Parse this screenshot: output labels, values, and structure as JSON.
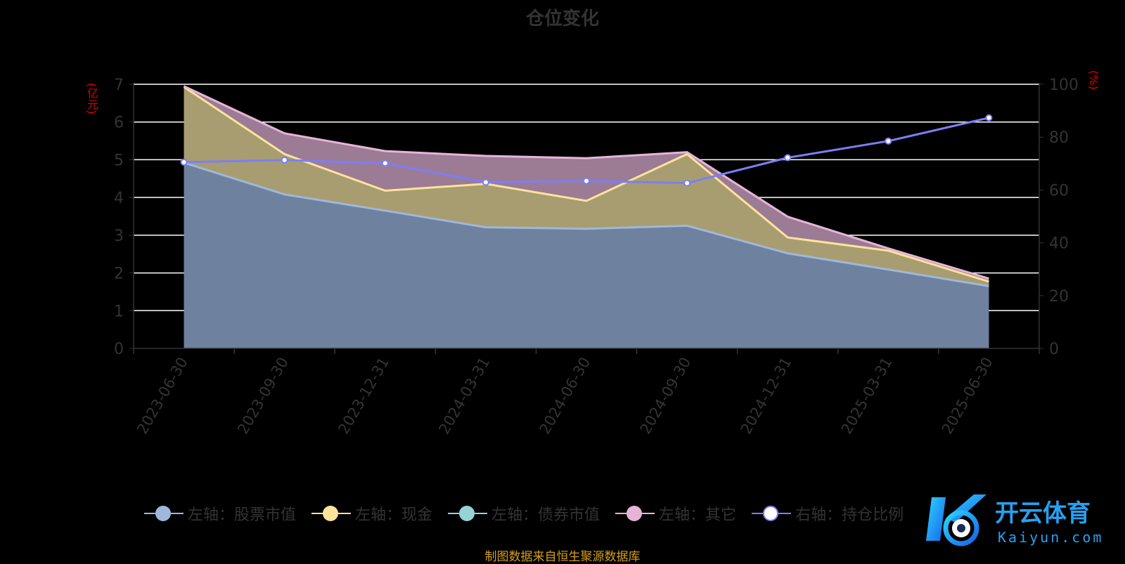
{
  "chart_data": {
    "type": "area",
    "title": "仓位变化",
    "left_unit": "(亿元)",
    "right_unit": "(%)",
    "categories": [
      "2023-06-30",
      "2023-09-30",
      "2023-12-31",
      "2024-03-31",
      "2024-06-30",
      "2024-09-30",
      "2024-12-31",
      "2025-03-31",
      "2025-06-30"
    ],
    "left_axis": {
      "ylim": [
        0,
        7
      ],
      "ticks": [
        0,
        1,
        2,
        3,
        4,
        5,
        6,
        7
      ]
    },
    "right_axis": {
      "ylim": [
        0,
        100
      ],
      "ticks": [
        0,
        20,
        40,
        60,
        80,
        100
      ]
    },
    "grid": true,
    "legend_position": "bottom",
    "stacked_series": [
      {
        "name": "左轴：股票市值",
        "axis": "left",
        "color": "#9fb7dc",
        "values": [
          4.92,
          4.08,
          3.65,
          3.21,
          3.17,
          3.25,
          2.52,
          2.09,
          1.65
        ]
      },
      {
        "name": "左轴：现金",
        "axis": "left",
        "color": "#fbe39c",
        "values": [
          2.01,
          1.07,
          0.53,
          1.15,
          0.74,
          1.9,
          0.42,
          0.5,
          0.12
        ]
      },
      {
        "name": "左轴：债券市值",
        "axis": "left",
        "color": "#96d3d6",
        "values": [
          0,
          0,
          0,
          0,
          0,
          0,
          0,
          0,
          0
        ]
      },
      {
        "name": "左轴：其它",
        "axis": "left",
        "color": "#e7b4d8",
        "values": [
          0.02,
          0.55,
          1.05,
          0.74,
          1.13,
          0.05,
          0.55,
          0.06,
          0.08
        ]
      }
    ],
    "line_series": [
      {
        "name": "右轴：持仓比例",
        "axis": "right",
        "color": "#7b7ff5",
        "values": [
          70.5,
          71.3,
          70.1,
          62.9,
          63.4,
          62.6,
          72.2,
          78.5,
          87.3
        ]
      }
    ]
  },
  "source_text": "制图数据来自恒生聚源数据库",
  "watermark": {
    "brand": "开云体育",
    "url": "Kaiyun.com"
  }
}
